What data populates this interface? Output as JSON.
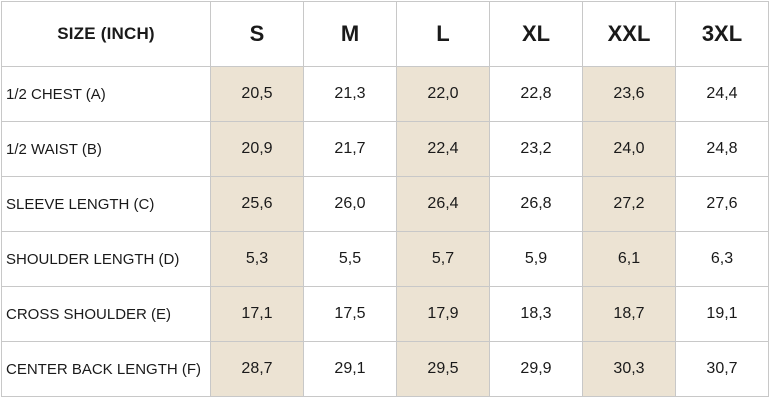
{
  "table": {
    "corner_label": "SIZE (INCH)",
    "sizes": [
      "S",
      "M",
      "L",
      "XL",
      "XXL",
      "3XL"
    ],
    "highlight_color": "#ece3d3",
    "highlighted_columns": [
      "S",
      "L",
      "XXL"
    ],
    "rows": [
      {
        "label": "1/2 CHEST (A)",
        "values": [
          "20,5",
          "21,3",
          "22,0",
          "22,8",
          "23,6",
          "24,4"
        ]
      },
      {
        "label": "1/2 WAIST (B)",
        "values": [
          "20,9",
          "21,7",
          "22,4",
          "23,2",
          "24,0",
          "24,8"
        ]
      },
      {
        "label": "SLEEVE LENGTH (C)",
        "values": [
          "25,6",
          "26,0",
          "26,4",
          "26,8",
          "27,2",
          "27,6"
        ]
      },
      {
        "label": "SHOULDER LENGTH (D)",
        "values": [
          "5,3",
          "5,5",
          "5,7",
          "5,9",
          "6,1",
          "6,3"
        ]
      },
      {
        "label": "CROSS SHOULDER (E)",
        "values": [
          "17,1",
          "17,5",
          "17,9",
          "18,3",
          "18,7",
          "19,1"
        ]
      },
      {
        "label": "CENTER BACK LENGTH (F)",
        "values": [
          "28,7",
          "29,1",
          "29,5",
          "29,9",
          "30,3",
          "30,7"
        ]
      }
    ]
  }
}
